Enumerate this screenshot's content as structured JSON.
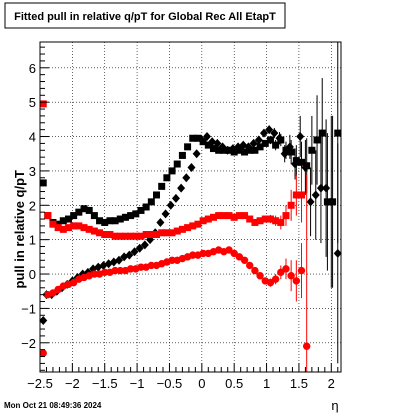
{
  "chart_data": {
    "type": "scatter",
    "title": "Fitted pull in relative q/pT for Global Rec All EtapT",
    "xlabel": "η",
    "ylabel": "pull in relative q/pT",
    "xlim": [
      -2.5,
      2.15
    ],
    "ylim": [
      -2.85,
      6.75
    ],
    "x_ticks": [
      -2.5,
      -2,
      -1.5,
      -1,
      -0.5,
      0,
      0.5,
      1,
      1.5,
      2
    ],
    "x_tick_labels": [
      "−2.5",
      "−2",
      "−1.5",
      "−1",
      "−0.5",
      "0",
      "0.5",
      "1",
      "1.5",
      "2"
    ],
    "y_ticks": [
      -2,
      -1,
      0,
      1,
      2,
      3,
      4,
      5,
      6
    ],
    "y_tick_labels": [
      "−2",
      "−1",
      "0",
      "1",
      "2",
      "3",
      "4",
      "5",
      "6"
    ],
    "grid": true,
    "series": [
      {
        "color": "#000000",
        "marker": "square",
        "x": [
          -2.45,
          -2.38,
          -2.3,
          -2.22,
          -2.14,
          -2.06,
          -1.98,
          -1.9,
          -1.82,
          -1.74,
          -1.66,
          -1.58,
          -1.5,
          -1.42,
          -1.34,
          -1.26,
          -1.18,
          -1.1,
          -1.02,
          -0.94,
          -0.86,
          -0.78,
          -0.7,
          -0.62,
          -0.54,
          -0.46,
          -0.38,
          -0.3,
          -0.22,
          -0.14,
          -0.06,
          0.02,
          0.1,
          0.18,
          0.26,
          0.34,
          0.42,
          0.5,
          0.58,
          0.66,
          0.74,
          0.82,
          0.9,
          0.98,
          1.06,
          1.14,
          1.22,
          1.3,
          1.38,
          1.46,
          1.54,
          1.62,
          1.7,
          1.78,
          1.86,
          1.94,
          2.02,
          2.1
        ],
        "y": [
          2.65,
          1.7,
          1.5,
          1.45,
          1.55,
          1.6,
          1.7,
          1.8,
          1.9,
          1.85,
          1.7,
          1.55,
          1.5,
          1.55,
          1.55,
          1.6,
          1.65,
          1.7,
          1.75,
          1.85,
          1.95,
          2.1,
          2.3,
          2.55,
          2.8,
          3.0,
          3.2,
          3.45,
          3.7,
          3.95,
          3.95,
          3.85,
          3.75,
          3.65,
          3.6,
          3.6,
          3.6,
          3.55,
          3.6,
          3.55,
          3.6,
          3.6,
          3.7,
          3.8,
          3.9,
          3.75,
          3.9,
          3.6,
          3.55,
          3.3,
          3.25,
          3.15,
          3.6,
          3.9,
          4.1,
          2.1,
          2.1,
          4.1
        ],
        "yerr": [
          0.05,
          0.05,
          0.04,
          0.04,
          0.04,
          0.04,
          0.04,
          0.04,
          0.04,
          0.04,
          0.04,
          0.04,
          0.04,
          0.04,
          0.04,
          0.04,
          0.04,
          0.04,
          0.04,
          0.05,
          0.05,
          0.05,
          0.05,
          0.06,
          0.06,
          0.06,
          0.06,
          0.07,
          0.07,
          0.07,
          0.07,
          0.07,
          0.07,
          0.07,
          0.07,
          0.07,
          0.07,
          0.07,
          0.07,
          0.07,
          0.07,
          0.08,
          0.09,
          0.1,
          0.12,
          0.15,
          0.18,
          0.25,
          0.35,
          0.45,
          0.6,
          0.8,
          1.0,
          1.3,
          1.6,
          2.0,
          2.5,
          3.2
        ]
      },
      {
        "color": "#000000",
        "marker": "diamond",
        "x": [
          -2.45,
          -2.4,
          -2.32,
          -2.24,
          -2.16,
          -2.08,
          -2.0,
          -1.92,
          -1.84,
          -1.76,
          -1.68,
          -1.6,
          -1.52,
          -1.44,
          -1.36,
          -1.28,
          -1.2,
          -1.12,
          -1.04,
          -0.96,
          -0.88,
          -0.8,
          -0.72,
          -0.64,
          -0.56,
          -0.48,
          -0.4,
          -0.32,
          -0.24,
          -0.16,
          -0.08,
          0.0,
          0.08,
          0.16,
          0.24,
          0.32,
          0.4,
          0.48,
          0.56,
          0.64,
          0.72,
          0.8,
          0.88,
          0.96,
          1.04,
          1.12,
          1.2,
          1.28,
          1.36,
          1.44,
          1.52,
          1.6,
          1.68,
          1.76,
          1.84,
          1.92,
          2.0,
          2.1
        ],
        "y": [
          -1.35,
          -0.6,
          -0.6,
          -0.5,
          -0.4,
          -0.3,
          -0.2,
          -0.1,
          0.0,
          0.05,
          0.15,
          0.2,
          0.25,
          0.3,
          0.35,
          0.4,
          0.5,
          0.55,
          0.65,
          0.75,
          0.85,
          1.0,
          1.2,
          1.5,
          1.75,
          2.0,
          2.2,
          2.5,
          2.8,
          3.1,
          3.5,
          3.9,
          4.0,
          3.85,
          3.8,
          3.7,
          3.6,
          3.65,
          3.7,
          3.75,
          3.7,
          3.8,
          3.9,
          4.1,
          4.2,
          4.1,
          3.95,
          3.5,
          3.7,
          3.2,
          4.0,
          3.1,
          2.1,
          2.3,
          2.5,
          2.5,
          2.1,
          0.6
        ],
        "yerr": [
          0.05,
          0.05,
          0.04,
          0.04,
          0.04,
          0.04,
          0.04,
          0.04,
          0.04,
          0.04,
          0.04,
          0.04,
          0.04,
          0.04,
          0.04,
          0.04,
          0.04,
          0.04,
          0.04,
          0.05,
          0.05,
          0.05,
          0.05,
          0.06,
          0.06,
          0.06,
          0.06,
          0.07,
          0.07,
          0.07,
          0.07,
          0.07,
          0.07,
          0.07,
          0.07,
          0.07,
          0.07,
          0.07,
          0.07,
          0.07,
          0.07,
          0.08,
          0.09,
          0.1,
          0.12,
          0.15,
          0.18,
          0.25,
          0.35,
          0.45,
          0.6,
          0.8,
          1.0,
          1.3,
          1.6,
          2.0,
          2.5,
          3.2
        ]
      },
      {
        "color": "#ff0000",
        "marker": "square",
        "x": [
          -2.45,
          -2.38,
          -2.3,
          -2.22,
          -2.14,
          -2.06,
          -1.98,
          -1.9,
          -1.82,
          -1.74,
          -1.66,
          -1.58,
          -1.5,
          -1.42,
          -1.34,
          -1.26,
          -1.18,
          -1.1,
          -1.02,
          -0.94,
          -0.86,
          -0.78,
          -0.7,
          -0.62,
          -0.54,
          -0.46,
          -0.38,
          -0.3,
          -0.22,
          -0.14,
          -0.06,
          0.02,
          0.1,
          0.18,
          0.26,
          0.34,
          0.42,
          0.5,
          0.58,
          0.66,
          0.74,
          0.82,
          0.9,
          0.98,
          1.06,
          1.14,
          1.22,
          1.3,
          1.38,
          1.46,
          1.54
        ],
        "y": [
          4.95,
          1.7,
          1.45,
          1.35,
          1.3,
          1.35,
          1.4,
          1.4,
          1.35,
          1.3,
          1.25,
          1.2,
          1.15,
          1.15,
          1.1,
          1.1,
          1.1,
          1.1,
          1.1,
          1.1,
          1.15,
          1.15,
          1.15,
          1.2,
          1.2,
          1.2,
          1.25,
          1.3,
          1.35,
          1.4,
          1.45,
          1.55,
          1.6,
          1.65,
          1.7,
          1.7,
          1.7,
          1.65,
          1.7,
          1.7,
          1.6,
          1.5,
          1.55,
          1.6,
          1.6,
          1.55,
          1.5,
          1.7,
          2.0,
          2.3,
          2.3
        ],
        "yerr": [
          0.05,
          0.05,
          0.04,
          0.04,
          0.04,
          0.04,
          0.04,
          0.04,
          0.04,
          0.04,
          0.04,
          0.04,
          0.04,
          0.04,
          0.04,
          0.04,
          0.04,
          0.04,
          0.04,
          0.05,
          0.05,
          0.05,
          0.05,
          0.06,
          0.06,
          0.06,
          0.06,
          0.07,
          0.07,
          0.07,
          0.07,
          0.07,
          0.07,
          0.07,
          0.07,
          0.07,
          0.07,
          0.07,
          0.07,
          0.07,
          0.07,
          0.08,
          0.09,
          0.1,
          0.12,
          0.15,
          0.2,
          0.3,
          0.45,
          0.6,
          0.8
        ]
      },
      {
        "color": "#ff0000",
        "marker": "circle",
        "x": [
          -2.45,
          -2.38,
          -2.3,
          -2.22,
          -2.14,
          -2.06,
          -1.98,
          -1.9,
          -1.82,
          -1.74,
          -1.66,
          -1.58,
          -1.5,
          -1.42,
          -1.34,
          -1.26,
          -1.18,
          -1.1,
          -1.02,
          -0.94,
          -0.86,
          -0.78,
          -0.7,
          -0.62,
          -0.54,
          -0.46,
          -0.38,
          -0.3,
          -0.22,
          -0.14,
          -0.06,
          0.02,
          0.1,
          0.18,
          0.26,
          0.34,
          0.42,
          0.5,
          0.58,
          0.66,
          0.74,
          0.82,
          0.9,
          0.98,
          1.06,
          1.14,
          1.22,
          1.3,
          1.38,
          1.46,
          1.54,
          1.62
        ],
        "y": [
          -2.3,
          -0.6,
          -0.55,
          -0.45,
          -0.35,
          -0.3,
          -0.25,
          -0.15,
          -0.1,
          -0.05,
          0.0,
          0.0,
          0.05,
          0.05,
          0.1,
          0.1,
          0.1,
          0.15,
          0.15,
          0.2,
          0.2,
          0.25,
          0.25,
          0.3,
          0.35,
          0.4,
          0.4,
          0.45,
          0.5,
          0.55,
          0.55,
          0.6,
          0.6,
          0.65,
          0.7,
          0.65,
          0.7,
          0.6,
          0.5,
          0.4,
          0.25,
          0.1,
          -0.05,
          -0.2,
          -0.25,
          -0.15,
          0.05,
          0.15,
          -0.05,
          -0.2,
          0.1,
          -2.1
        ],
        "yerr": [
          0.05,
          0.05,
          0.04,
          0.04,
          0.04,
          0.04,
          0.04,
          0.04,
          0.04,
          0.04,
          0.04,
          0.04,
          0.04,
          0.04,
          0.04,
          0.04,
          0.04,
          0.04,
          0.04,
          0.05,
          0.05,
          0.05,
          0.05,
          0.06,
          0.06,
          0.06,
          0.06,
          0.07,
          0.07,
          0.07,
          0.07,
          0.07,
          0.07,
          0.07,
          0.07,
          0.07,
          0.07,
          0.07,
          0.07,
          0.07,
          0.07,
          0.08,
          0.09,
          0.1,
          0.12,
          0.15,
          0.2,
          0.3,
          0.45,
          0.6,
          0.8,
          5.0
        ]
      }
    ]
  },
  "footer": {
    "timestamp": "Mon Oct 21 08:49:36 2024"
  }
}
